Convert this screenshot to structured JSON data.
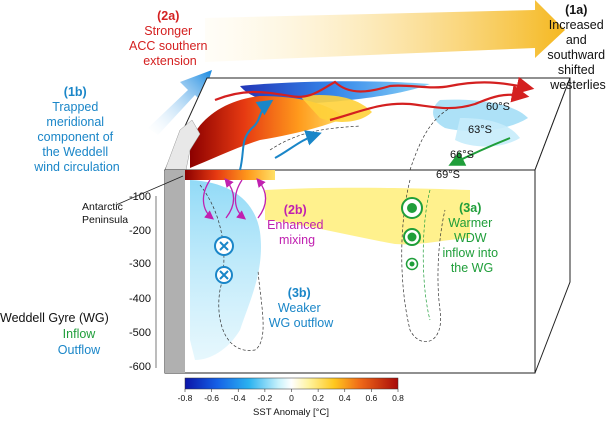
{
  "colors": {
    "red": "#d42020",
    "blue": "#1a86c8",
    "green": "#1f9e3a",
    "magenta": "#c020b0",
    "black": "#111111",
    "grey_box": "#b0b0b0"
  },
  "label_1a": {
    "num": "(1a)",
    "lines": [
      "Increased",
      "and",
      "southward",
      "shifted",
      "westerlies"
    ]
  },
  "label_1b": {
    "num": "(1b)",
    "lines": [
      "Trapped",
      "meridional",
      "component of",
      "the Weddell",
      "wind circulation"
    ]
  },
  "label_2a": {
    "num": "(2a)",
    "lines": [
      "Stronger",
      "ACC southern",
      "extension"
    ]
  },
  "label_2b": {
    "num": "(2b)",
    "lines": [
      "Enhanced",
      "mixing"
    ]
  },
  "label_3a": {
    "num": "(3a)",
    "lines": [
      "Warmer",
      "WDW",
      "inflow into",
      "the WG"
    ]
  },
  "label_3b": {
    "num": "(3b)",
    "lines": [
      "Weaker",
      "WG outflow"
    ]
  },
  "antarctic": {
    "lines": [
      "Antarctic",
      "Peninsula"
    ]
  },
  "legend_wg": {
    "title": "Weddell Gyre (WG)",
    "inflow": "Inflow",
    "outflow": "Outflow"
  },
  "latitudes": [
    "60°S",
    "63°S",
    "66°S",
    "69°S"
  ],
  "depth_ticks": [
    "-100",
    "-200",
    "-300",
    "-400",
    "-500",
    "-600"
  ],
  "colorbar": {
    "ticks": [
      "-0.8",
      "-0.6",
      "-0.4",
      "-0.2",
      "0",
      "0.2",
      "0.4",
      "0.6",
      "0.8"
    ],
    "label": "SST Anomaly [°C]",
    "min": -0.8,
    "max": 0.8
  }
}
